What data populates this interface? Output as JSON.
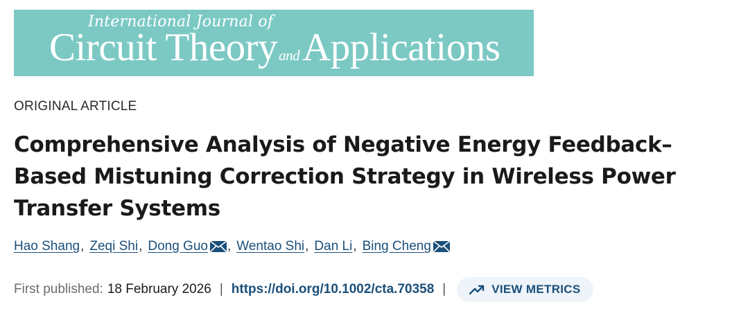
{
  "journal_banner": {
    "line1": "International Journal of",
    "line2_part1": "Circuit Theory",
    "line2_and": "and",
    "line2_part2": "Applications",
    "background_color": "#7cc9c4"
  },
  "article": {
    "type_label": "ORIGINAL ARTICLE",
    "title": "Comprehensive Analysis of Negative Energy Feedback–Based Mistuning Correction Strategy in Wireless Power Transfer Systems",
    "authors": [
      {
        "name": "Hao Shang",
        "corresponding": false,
        "separator": ","
      },
      {
        "name": "Zeqi Shi",
        "corresponding": false,
        "separator": ","
      },
      {
        "name": "Dong Guo",
        "corresponding": true,
        "separator": ","
      },
      {
        "name": "Wentao Shi",
        "corresponding": false,
        "separator": ","
      },
      {
        "name": "Dan Li",
        "corresponding": false,
        "separator": ","
      },
      {
        "name": "Bing Cheng",
        "corresponding": true,
        "separator": ""
      }
    ],
    "first_published_label": "First published:",
    "first_published_date": "18 February 2026",
    "divider": "|",
    "doi": "https://doi.org/10.1002/cta.70358",
    "metrics_button_label": "VIEW METRICS"
  },
  "icons": {
    "mail": "mail-icon",
    "metrics": "trending-up-icon"
  },
  "colors": {
    "link": "#1b4f7a",
    "metrics_button_bg": "#eef4f9",
    "muted_text": "#6b6b6b"
  }
}
